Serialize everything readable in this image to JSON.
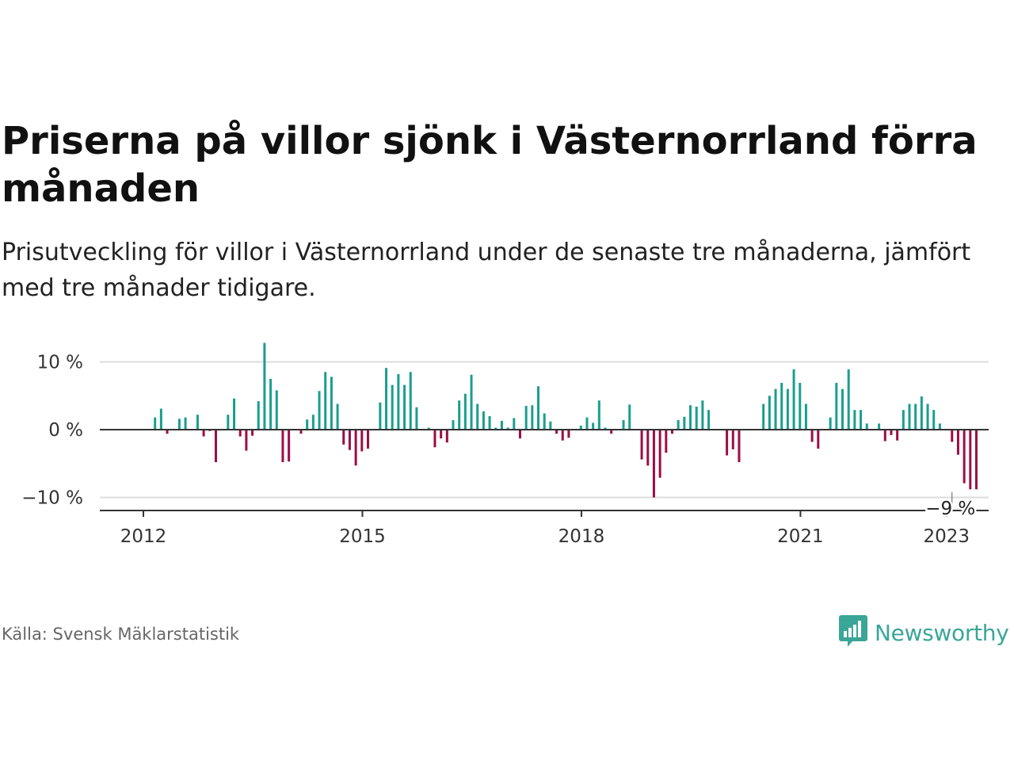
{
  "title": "Priserna på villor sjönk i Västernorrland förra månaden",
  "subtitle": "Prisutveckling för villor i Västernorrland under de senaste tre månaderna, jämfört med tre månader tidigare.",
  "source": "Källa: Svensk Mäklarstatistik",
  "logo": {
    "text": "Newsworthy",
    "icon": "bar-chart-speech-bubble-icon",
    "color": "#3aa697"
  },
  "chart_data": {
    "type": "bar",
    "title": "Priserna på villor sjönk i Västernorrland förra månaden",
    "xlabel": "",
    "ylabel": "",
    "ylim": [
      -12,
      12
    ],
    "grid": true,
    "colors": {
      "positive": "#1a9e8f",
      "negative": "#9c0d45",
      "axis": "#333333",
      "grid": "#dddddd"
    },
    "x_start": "2012-01",
    "x_ticks": [
      {
        "label": "2012",
        "year": 2012
      },
      {
        "label": "2015",
        "year": 2015
      },
      {
        "label": "2018",
        "year": 2018
      },
      {
        "label": "2021",
        "year": 2021
      },
      {
        "label": "2023",
        "year": 2023
      }
    ],
    "y_ticks": [
      {
        "value": 10,
        "label": "10 %"
      },
      {
        "value": 0,
        "label": "0 %"
      },
      {
        "value": -10,
        "label": "−10 %"
      }
    ],
    "annotation": {
      "label": "−9 %",
      "value": -9,
      "date": "2023-01"
    },
    "series": [
      {
        "values": [
          null,
          1.8,
          3.1,
          -0.6,
          null,
          1.6,
          1.8,
          null,
          2.2,
          -1.0,
          -0.2,
          -4.8,
          null,
          2.2,
          4.6,
          -1.0,
          -3.1,
          -0.9,
          4.2,
          12.8,
          7.5,
          5.8,
          -4.8,
          -4.7,
          null,
          -0.6,
          1.5,
          2.2,
          5.7,
          8.5,
          7.8,
          3.8,
          -2.2,
          -3.0,
          -5.3,
          -3.2,
          -2.8,
          null,
          4.0,
          9.1,
          6.6,
          8.2,
          6.6,
          8.5,
          3.3,
          null,
          0.3,
          -2.6,
          -1.3,
          -1.9,
          1.4,
          4.3,
          5.3,
          8.1,
          3.8,
          2.7,
          2.0,
          0.3,
          1.3,
          0.3,
          1.7,
          -1.3,
          3.5,
          3.6,
          6.4,
          2.4,
          1.2,
          -0.6,
          -1.6,
          -1.2,
          null,
          0.6,
          1.8,
          1.0,
          4.3,
          0.3,
          -0.6,
          null,
          1.4,
          3.7,
          null,
          -4.4,
          -5.3,
          -10.0,
          -7.1,
          -3.4,
          -0.6,
          1.4,
          1.9,
          3.6,
          3.4,
          4.3,
          2.9,
          null,
          null,
          -3.8,
          -2.9,
          -4.8,
          null,
          null,
          null,
          3.8,
          5.0,
          6.0,
          6.9,
          6.0,
          8.9,
          6.9,
          3.8,
          -1.8,
          -2.8,
          null,
          1.8,
          6.9,
          6.0,
          8.9,
          2.9,
          2.9,
          0.9,
          null,
          0.9,
          -1.7,
          -0.8,
          -1.6,
          2.9,
          3.8,
          3.8,
          4.9,
          3.8,
          2.9,
          0.9,
          null,
          -1.8,
          -3.7,
          -7.9,
          -8.8,
          -8.8
        ]
      }
    ]
  }
}
